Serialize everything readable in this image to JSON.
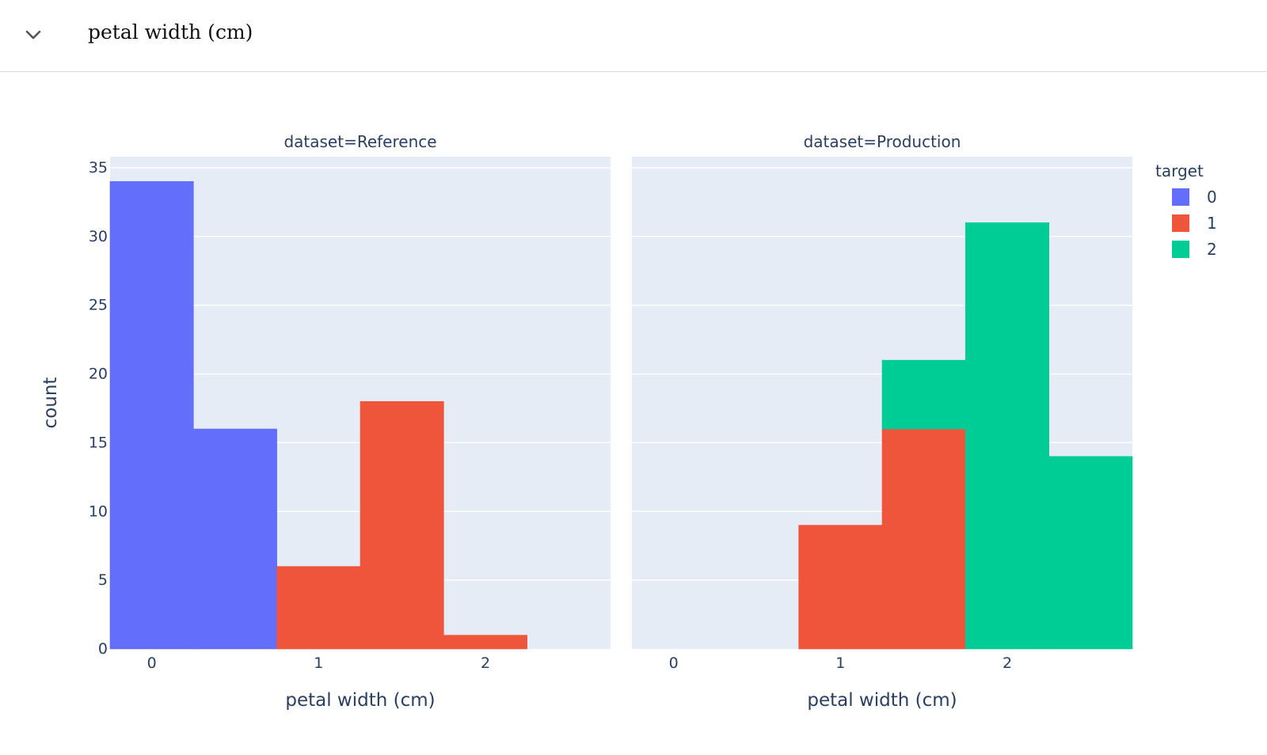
{
  "header": {
    "title": "petal width (cm)",
    "icon": "chevron-down-icon"
  },
  "chart_data": {
    "type": "bar",
    "barmode": "stack",
    "ylabel": "count",
    "ylim": [
      0,
      35.8
    ],
    "yticks": [
      0,
      5,
      10,
      15,
      20,
      25,
      30,
      35
    ],
    "xticks": [
      0,
      1,
      2
    ],
    "xlim": [
      -0.25,
      2.75
    ],
    "bin_width": 0.5,
    "legend": {
      "title": "target",
      "position": "top-right"
    },
    "series": [
      {
        "name": "0",
        "color": "#636efa"
      },
      {
        "name": "1",
        "color": "#ef553b"
      },
      {
        "name": "2",
        "color": "#00cc96"
      }
    ],
    "panels": [
      {
        "title": "dataset=Reference",
        "xlabel": "petal width (cm)",
        "bars": [
          {
            "bin": 0.0,
            "series": "0",
            "value": 34
          },
          {
            "bin": 0.5,
            "series": "0",
            "value": 16
          },
          {
            "bin": 1.0,
            "series": "1",
            "value": 6
          },
          {
            "bin": 1.5,
            "series": "1",
            "value": 18
          },
          {
            "bin": 2.0,
            "series": "1",
            "value": 1
          }
        ]
      },
      {
        "title": "dataset=Production",
        "xlabel": "petal width (cm)",
        "bars": [
          {
            "bin": 1.0,
            "series": "1",
            "value": 9
          },
          {
            "bin": 1.5,
            "series": "1",
            "value": 16
          },
          {
            "bin": 1.5,
            "series": "2",
            "value": 5
          },
          {
            "bin": 2.0,
            "series": "2",
            "value": 31
          },
          {
            "bin": 2.5,
            "series": "2",
            "value": 14
          }
        ]
      }
    ]
  }
}
